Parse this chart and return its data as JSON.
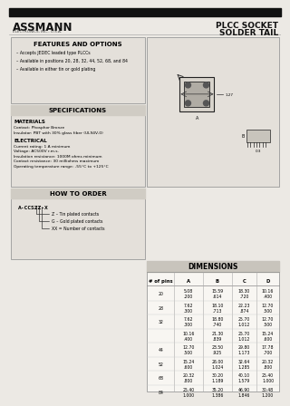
{
  "bg_color": "#ece9e4",
  "top_bar_color": "#111111",
  "company_name": "ASSMANN",
  "company_sub": "ELECTRONICS, INC., U.S.A.",
  "header_title1": "PLCC SOCKET",
  "header_title2": "SOLDER TAIL",
  "features_title": "FEATURES AND OPTIONS",
  "features": [
    "Accepts JEDEC leaded type PLCCs",
    "Available in positions 20, 28, 32, 44, 52, 68, and 84",
    "Available in either tin or gold plating"
  ],
  "specs_title": "SPECIFICATIONS",
  "materials_title": "MATERIALS",
  "materials_lines": [
    "Contact: Phosphor Bronze",
    "Insulator: PBT with 30% glass fiber (UL94V-0)"
  ],
  "electrical_title": "ELECTRICAL",
  "electrical_lines": [
    "Current rating: 1 A minimum",
    "Voltage: AC500V r.m.s.",
    "Insulation resistance: 1000M ohms minimum",
    "Contact resistance: 30 milliohms maximum",
    "Operating temperature range: -55°C to +125°C"
  ],
  "how_title": "HOW TO ORDER",
  "order_code": "A-CCSZZ-X",
  "order_lines": [
    "Z – Tin plated contacts",
    "G – Gold plated contacts",
    "XX = Number of contacts"
  ],
  "dim_title": "DIMENSIONS",
  "dim_headers": [
    "# of pins",
    "A",
    "B",
    "C",
    "D"
  ],
  "dim_data": [
    [
      "20",
      "5.08\n.200",
      "15.59\n.614",
      "18.30\n.720",
      "10.16\n.400"
    ],
    [
      "28",
      "7.62\n.300",
      "18.10\n.713",
      "22.23\n.874",
      "12.70\n.500"
    ],
    [
      "32",
      "7.62\n.300",
      "18.80\n.740",
      "25.70\n1.012",
      "12.70\n.500"
    ],
    [
      "",
      "10.16\n.400",
      "21.30\n.839",
      "25.70\n1.012",
      "15.24\n.600"
    ],
    [
      "44",
      "12.70\n.500",
      "23.50\n.925",
      "29.80\n1.173",
      "17.78\n.700"
    ],
    [
      "52",
      "15.24\n.600",
      "26.00\n1.024",
      "32.64\n1.285",
      "20.32\n.800"
    ],
    [
      "68",
      "20.32\n.800",
      "30.20\n1.189",
      "40.10\n1.579",
      "25.40\n1.000"
    ],
    [
      "84",
      "25.40\n1.000",
      "35.20\n1.386",
      "46.90\n1.846",
      "30.48\n1.200"
    ]
  ],
  "panel_color": "#d0ccc4",
  "box_face": "#e4e0da",
  "box_edge": "#999999",
  "table_face": "#f8f6f2",
  "table_hdr_face": "#c8c4bc"
}
